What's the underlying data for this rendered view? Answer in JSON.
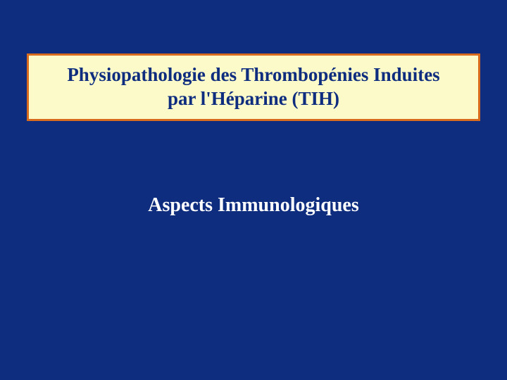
{
  "slide": {
    "background_color": "#0e2d7f",
    "title_box": {
      "background_color": "#fdfac9",
      "border_color": "#d96b1f",
      "border_width": 3,
      "text_color": "#0e2d7f",
      "font_size": 27,
      "font_weight": "bold",
      "line1": "Physiopathologie des Thrombopénies Induites",
      "line2": "par l'Héparine (TIH)"
    },
    "subtitle": {
      "text": "Aspects  Immunologiques",
      "text_color": "#ffffff",
      "font_size": 28,
      "font_weight": "bold"
    }
  }
}
